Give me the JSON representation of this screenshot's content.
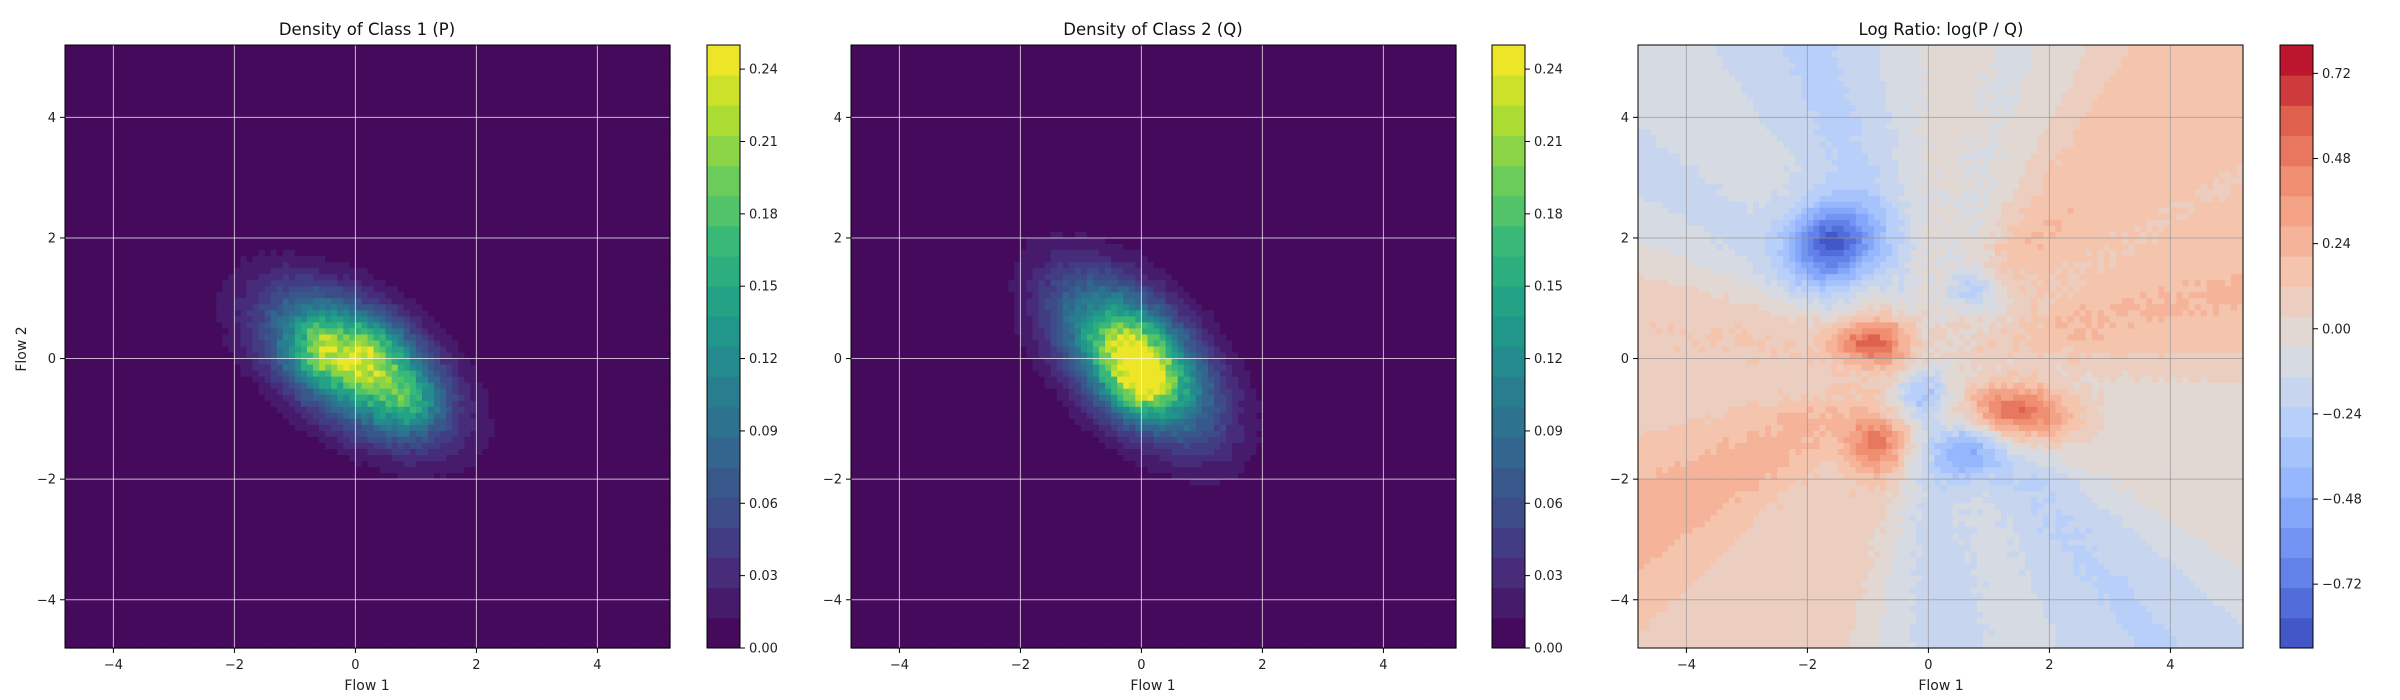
{
  "chart_data": [
    {
      "type": "heatmap",
      "title": "Density of Class 1 (P)",
      "xlabel": "Flow 1",
      "ylabel": "Flow 2",
      "xlim": [
        -4.8,
        5.2
      ],
      "ylim": [
        -4.8,
        5.2
      ],
      "xticks": [
        "−4",
        "−2",
        "0",
        "2",
        "4"
      ],
      "yticks": [
        "−4",
        "−2",
        "0",
        "2",
        "4"
      ],
      "grid": true,
      "colormap": "viridis",
      "colorbar": {
        "range": [
          0.0,
          0.25
        ],
        "ticks": [
          "0.00",
          "0.03",
          "0.06",
          "0.09",
          "0.12",
          "0.15",
          "0.18",
          "0.21",
          "0.24"
        ],
        "levels": 20
      },
      "field": {
        "kind": "gaussian",
        "center": [
          0.0,
          -0.1
        ],
        "sigma_major": 1.1,
        "sigma_minor": 0.6,
        "angle_deg": -35,
        "peak": 0.25,
        "support_threshold": 0.004,
        "hotspots": [
          [
            -0.6,
            0.15
          ],
          [
            0.3,
            0.15
          ],
          [
            0.9,
            -0.7
          ]
        ]
      }
    },
    {
      "type": "heatmap",
      "title": "Density of Class 2 (Q)",
      "xlabel": "Flow 1",
      "ylabel": "",
      "xlim": [
        -4.8,
        5.2
      ],
      "ylim": [
        -4.8,
        5.2
      ],
      "xticks": [
        "−4",
        "−2",
        "0",
        "2",
        "4"
      ],
      "yticks": [
        "−4",
        "−2",
        "0",
        "2",
        "4"
      ],
      "grid": true,
      "colormap": "viridis",
      "colorbar": {
        "range": [
          0.0,
          0.25
        ],
        "ticks": [
          "0.00",
          "0.03",
          "0.06",
          "0.09",
          "0.12",
          "0.15",
          "0.18",
          "0.21",
          "0.24"
        ],
        "levels": 20
      },
      "field": {
        "kind": "gaussian",
        "center": [
          -0.1,
          0.0
        ],
        "sigma_major": 1.1,
        "sigma_minor": 0.6,
        "angle_deg": -45,
        "peak": 0.25,
        "support_threshold": 0.004,
        "hotspots": [
          [
            -0.3,
            0.2
          ],
          [
            0.2,
            -0.3
          ],
          [
            -0.1,
            -0.5
          ]
        ]
      }
    },
    {
      "type": "heatmap",
      "title": "Log Ratio: log(P / Q)",
      "xlabel": "Flow 1",
      "ylabel": "",
      "xlim": [
        -4.8,
        5.2
      ],
      "ylim": [
        -4.8,
        5.2
      ],
      "xticks": [
        "−4",
        "−2",
        "0",
        "2",
        "4"
      ],
      "yticks": [
        "−4",
        "−2",
        "0",
        "2",
        "4"
      ],
      "grid": true,
      "colormap": "coolwarm",
      "colorbar": {
        "range": [
          -0.9,
          0.8
        ],
        "ticks": [
          "−0.72",
          "−0.48",
          "−0.24",
          "0.00",
          "0.24",
          "0.48",
          "0.72"
        ],
        "levels": 20
      },
      "field": {
        "kind": "log_ratio",
        "blobs": [
          {
            "center": [
              -1.6,
              1.9
            ],
            "amp": -0.75,
            "sx": 0.5,
            "sy": 0.45
          },
          {
            "center": [
              -0.9,
              0.3
            ],
            "amp": 0.55,
            "sx": 0.45,
            "sy": 0.3
          },
          {
            "center": [
              1.4,
              -0.9
            ],
            "amp": 0.55,
            "sx": 0.7,
            "sy": 0.35
          },
          {
            "center": [
              0.6,
              -1.5
            ],
            "amp": -0.45,
            "sx": 0.4,
            "sy": 0.35
          },
          {
            "center": [
              -0.9,
              -1.4
            ],
            "amp": 0.45,
            "sx": 0.35,
            "sy": 0.35
          },
          {
            "center": [
              -0.1,
              -0.6
            ],
            "amp": -0.35,
            "sx": 0.3,
            "sy": 0.3
          },
          {
            "center": [
              0.8,
              1.1
            ],
            "amp": -0.3,
            "sx": 0.3,
            "sy": 0.25
          }
        ]
      }
    }
  ]
}
